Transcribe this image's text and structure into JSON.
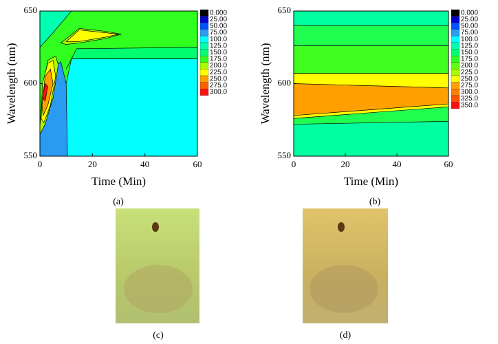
{
  "panel_labels": [
    "(a)",
    "(b)",
    "(c)",
    "(d)"
  ],
  "chart_data": [
    {
      "type": "contour",
      "xlabel": "Time (Min)",
      "ylabel": "Wavelength (nm)",
      "xlim": [
        0,
        60
      ],
      "ylim": [
        550,
        650
      ],
      "xticks": [
        0,
        20,
        40,
        60
      ],
      "yticks": [
        550,
        600,
        650
      ],
      "levels": [
        {
          "value": 0,
          "label": "0.000"
        },
        {
          "value": 25,
          "label": "25.00"
        },
        {
          "value": 50,
          "label": "50.00"
        },
        {
          "value": 75,
          "label": "75.00"
        },
        {
          "value": 100,
          "label": "100.0"
        },
        {
          "value": 125,
          "label": "125.0"
        },
        {
          "value": 150,
          "label": "150.0"
        },
        {
          "value": 175,
          "label": "175.0"
        },
        {
          "value": 200,
          "label": "200.0"
        },
        {
          "value": 225,
          "label": "225.0"
        },
        {
          "value": 250,
          "label": "250.0"
        },
        {
          "value": 275,
          "label": "275.0"
        },
        {
          "value": 300,
          "label": "300.0"
        }
      ],
      "level_colors": [
        "#000000",
        "#0000c8",
        "#0050ff",
        "#2a9bf0",
        "#00ffff",
        "#00ffb0",
        "#00ff70",
        "#30ff20",
        "#a8ff00",
        "#ffff00",
        "#ffa000",
        "#ff6000",
        "#ff1010"
      ],
      "regions": [
        {
          "color": "#30ff20",
          "x": [
            0,
            60,
            60,
            0
          ],
          "y": [
            550,
            550,
            650,
            650
          ]
        },
        {
          "color": "#00ff70",
          "x": [
            12,
            60,
            60,
            14,
            10
          ],
          "y": [
            617,
            617,
            625,
            624,
            610
          ]
        },
        {
          "color": "#00ffff",
          "x": [
            10,
            60,
            60,
            12,
            10
          ],
          "y": [
            550,
            550,
            617,
            617,
            600
          ]
        },
        {
          "color": "#00ffb0",
          "x": [
            0,
            12,
            5,
            0
          ],
          "y": [
            650,
            650,
            635,
            625
          ]
        },
        {
          "color": "#2a9bf0",
          "x": [
            0,
            10.5,
            10,
            8,
            6,
            4,
            0
          ],
          "y": [
            550,
            550,
            600,
            615,
            612,
            595,
            575
          ]
        },
        {
          "color": "#a8ff00",
          "x": [
            0,
            1,
            3,
            6,
            7,
            5,
            2,
            0
          ],
          "y": [
            570,
            595,
            616,
            619,
            613,
            590,
            572,
            565
          ]
        },
        {
          "color": "#ffff00",
          "x": [
            0.5,
            1,
            3,
            5,
            6,
            4,
            1.5
          ],
          "y": [
            576,
            600,
            614,
            616,
            605,
            585,
            573
          ]
        },
        {
          "color": "#ffa000",
          "x": [
            0.8,
            2,
            4,
            5,
            3,
            1.2
          ],
          "y": [
            585,
            605,
            610,
            600,
            585,
            578
          ]
        },
        {
          "color": "#ff1010",
          "x": [
            1,
            2,
            3,
            2
          ],
          "y": [
            590,
            600,
            598,
            588
          ]
        },
        {
          "color": "#a8ff00",
          "x": [
            8,
            15,
            25,
            31,
            25,
            15,
            10
          ],
          "y": [
            628,
            638,
            636,
            634,
            631,
            628,
            627
          ]
        },
        {
          "color": "#ffff00",
          "x": [
            10,
            15,
            25,
            30,
            25,
            15
          ],
          "y": [
            629,
            637,
            635,
            634,
            632,
            629
          ]
        }
      ]
    },
    {
      "type": "contour",
      "xlabel": "Time (Min)",
      "ylabel": "Wavelength (nm)",
      "xlim": [
        0,
        60
      ],
      "ylim": [
        550,
        650
      ],
      "xticks": [
        0,
        20,
        40,
        60
      ],
      "yticks": [
        550,
        600,
        650
      ],
      "levels": [
        {
          "value": 0,
          "label": "0.000"
        },
        {
          "value": 25,
          "label": "25.00"
        },
        {
          "value": 50,
          "label": "50.00"
        },
        {
          "value": 75,
          "label": "75.00"
        },
        {
          "value": 100,
          "label": "100.0"
        },
        {
          "value": 125,
          "label": "125.0"
        },
        {
          "value": 150,
          "label": "150.0"
        },
        {
          "value": 175,
          "label": "175.0"
        },
        {
          "value": 200,
          "label": "200.0"
        },
        {
          "value": 225,
          "label": "225.0"
        },
        {
          "value": 250,
          "label": "250.0"
        },
        {
          "value": 275,
          "label": "275.0"
        },
        {
          "value": 300,
          "label": "300.0"
        },
        {
          "value": 325,
          "label": "325.0"
        },
        {
          "value": 350,
          "label": "350.0"
        }
      ],
      "level_colors": [
        "#000000",
        "#0000c8",
        "#0050ff",
        "#2a9bf0",
        "#00ffff",
        "#00ffb0",
        "#00ff70",
        "#30ff20",
        "#60ff10",
        "#a8ff00",
        "#ffff00",
        "#ffa000",
        "#ff8000",
        "#ff5000",
        "#ff1010"
      ],
      "regions": [
        {
          "color": "#00ffa0",
          "x": [
            0,
            60,
            60,
            0
          ],
          "y": [
            550,
            550,
            650,
            650
          ]
        },
        {
          "color": "#20ff50",
          "x": [
            0,
            60,
            60,
            0
          ],
          "y": [
            572,
            574,
            640,
            640
          ]
        },
        {
          "color": "#40ff20",
          "x": [
            0,
            60,
            60,
            0
          ],
          "y": [
            607,
            607,
            626,
            626
          ]
        },
        {
          "color": "#ffff00",
          "x": [
            0,
            60,
            60,
            0
          ],
          "y": [
            576,
            584,
            607,
            607
          ]
        },
        {
          "color": "#ffa000",
          "x": [
            0,
            60,
            60,
            0
          ],
          "y": [
            578,
            586,
            597,
            600
          ]
        }
      ]
    }
  ]
}
